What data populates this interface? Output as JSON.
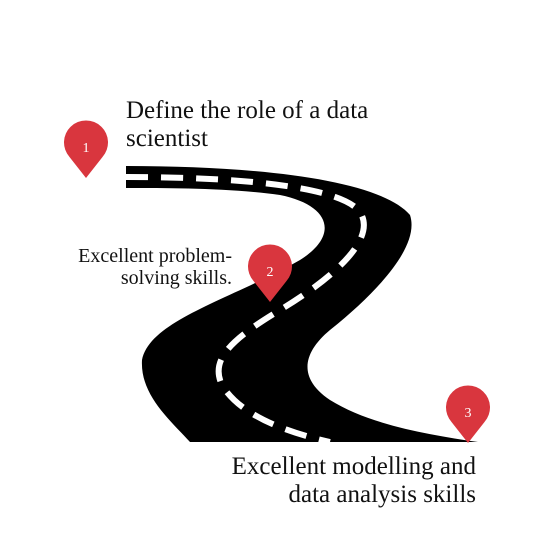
{
  "steps": [
    {
      "number": "1",
      "lines": [
        "Define the role of a data",
        "scientist"
      ]
    },
    {
      "number": "2",
      "lines": [
        "Excellent problem-",
        "solving skills."
      ]
    },
    {
      "number": "3",
      "lines": [
        "Excellent modelling and",
        "data analysis skills"
      ]
    }
  ],
  "colors": {
    "road": "#000000",
    "lane_marking": "#ffffff",
    "pin": "#d9363e",
    "text": "#111111"
  },
  "icons": {
    "pin": "map-pin-icon",
    "road": "winding-road-icon"
  }
}
